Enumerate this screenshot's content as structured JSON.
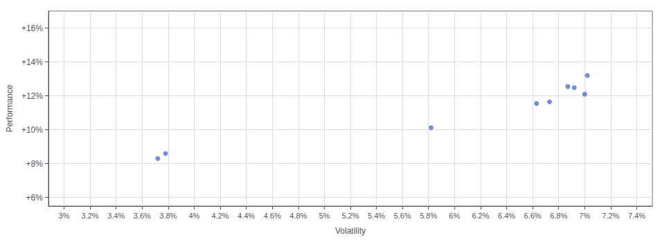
{
  "chart_data": {
    "type": "scatter",
    "xlabel": "Volatility",
    "ylabel": "Performance",
    "x": [
      3.78,
      3.72,
      5.82,
      6.63,
      6.73,
      6.87,
      6.92,
      7.0,
      7.02
    ],
    "values": [
      8.6,
      8.3,
      10.12,
      11.55,
      11.65,
      12.55,
      12.48,
      12.1,
      13.2
    ],
    "xlim": [
      2.88,
      7.52
    ],
    "ylim": [
      5.5,
      17.0
    ],
    "xticks": [
      {
        "value": 3.0,
        "label": "3%"
      },
      {
        "value": 3.2,
        "label": "3.2%"
      },
      {
        "value": 3.4,
        "label": "3.4%"
      },
      {
        "value": 3.6,
        "label": "3.6%"
      },
      {
        "value": 3.8,
        "label": "3.8%"
      },
      {
        "value": 4.0,
        "label": "4%"
      },
      {
        "value": 4.2,
        "label": "4.2%"
      },
      {
        "value": 4.4,
        "label": "4.4%"
      },
      {
        "value": 4.6,
        "label": "4.6%"
      },
      {
        "value": 4.8,
        "label": "4.8%"
      },
      {
        "value": 5.0,
        "label": "5%"
      },
      {
        "value": 5.2,
        "label": "5.2%"
      },
      {
        "value": 5.4,
        "label": "5.4%"
      },
      {
        "value": 5.6,
        "label": "5.6%"
      },
      {
        "value": 5.8,
        "label": "5.8%"
      },
      {
        "value": 6.0,
        "label": "6%"
      },
      {
        "value": 6.2,
        "label": "6.2%"
      },
      {
        "value": 6.4,
        "label": "6.4%"
      },
      {
        "value": 6.6,
        "label": "6.6%"
      },
      {
        "value": 6.8,
        "label": "6.8%"
      },
      {
        "value": 7.0,
        "label": "7%"
      },
      {
        "value": 7.2,
        "label": "7.2%"
      },
      {
        "value": 7.4,
        "label": "7.4%"
      }
    ],
    "yticks": [
      {
        "value": 6,
        "label": "+6%"
      },
      {
        "value": 8,
        "label": "+8%"
      },
      {
        "value": 10,
        "label": "+10%"
      },
      {
        "value": 12,
        "label": "+12%"
      },
      {
        "value": 14,
        "label": "+14%"
      },
      {
        "value": 16,
        "label": "+16%"
      }
    ],
    "grid": true
  }
}
